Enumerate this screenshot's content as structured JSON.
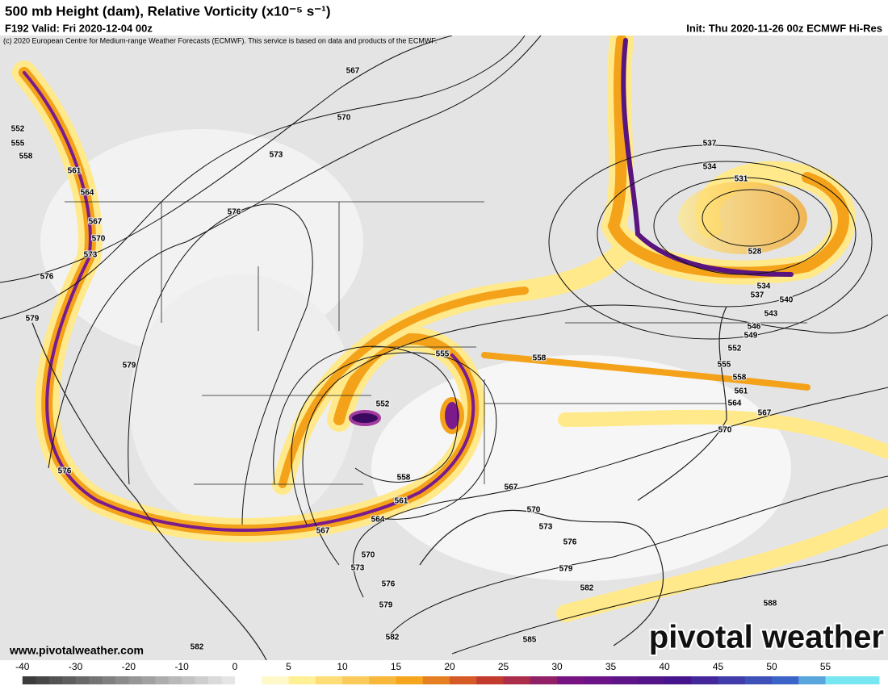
{
  "header": {
    "title": "500 mb Height (dam), Relative Vorticity (x10⁻⁵ s⁻¹)",
    "valid": "F192 Valid: Fri 2020-12-04 00z",
    "init": "Init: Thu 2020-11-26 00z ECMWF Hi-Res",
    "copyright": "(c) 2020 European Centre for Medium-range Weather Forecasts (ECMWF). This service is based on data and products of the ECMWF."
  },
  "footer": {
    "website": "www.pivotalweather.com",
    "logo": "pivotal weather"
  },
  "contour_labels": [
    552,
    555,
    558,
    561,
    564,
    567,
    570,
    573,
    576,
    579,
    579,
    576,
    573,
    570,
    567,
    576,
    555,
    552,
    558,
    561,
    564,
    567,
    570,
    573,
    576,
    579,
    582,
    585,
    582,
    582,
    579,
    576,
    573,
    570,
    567,
    558,
    537,
    534,
    531,
    528,
    534,
    537,
    540,
    543,
    546,
    549,
    552,
    555,
    558,
    561,
    564,
    567,
    570,
    588
  ],
  "colorbar": {
    "ticks": [
      -40,
      -30,
      -20,
      -10,
      0,
      5,
      10,
      15,
      20,
      25,
      30,
      35,
      40,
      45,
      50,
      55
    ]
  }
}
